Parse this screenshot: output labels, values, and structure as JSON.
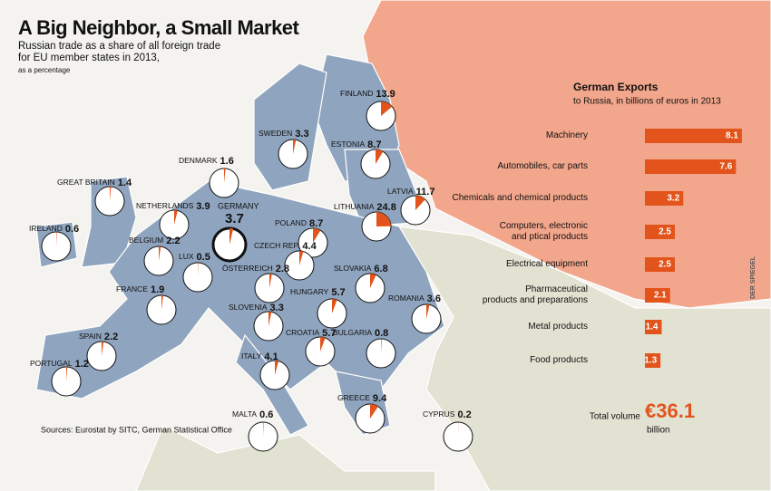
{
  "header": {
    "title": "A Big Neighbor, a Small Market",
    "subtitle": "Russian trade as a share of all foreign trade\nfor EU member states in 2013,",
    "note": "as a percentage"
  },
  "source": "Sources: Eurostat by SITC, German Statistical Office",
  "credit": "DER SPIEGEL",
  "countries": [
    {
      "name": "FINLAND",
      "value": 13.9
    },
    {
      "name": "SWEDEN",
      "value": 3.3
    },
    {
      "name": "ESTONIA",
      "value": 8.7
    },
    {
      "name": "DENMARK",
      "value": 1.6
    },
    {
      "name": "GREAT BRITAIN",
      "value": 1.4
    },
    {
      "name": "NETHERLANDS",
      "value": 3.9
    },
    {
      "name": "GERMANY",
      "value": 3.7
    },
    {
      "name": "LATVIA",
      "value": 11.7
    },
    {
      "name": "LITHUANIA",
      "value": 24.8
    },
    {
      "name": "IRELAND",
      "value": 0.6
    },
    {
      "name": "POLAND",
      "value": 8.7
    },
    {
      "name": "BELGIUM",
      "value": 2.2
    },
    {
      "name": "LUX",
      "value": 0.5
    },
    {
      "name": "CZECH REP.",
      "value": 4.4
    },
    {
      "name": "ÖSTERREICH",
      "value": 2.8
    },
    {
      "name": "SLOVAKIA",
      "value": 6.8
    },
    {
      "name": "FRANCE",
      "value": 1.9
    },
    {
      "name": "HUNGARY",
      "value": 5.7
    },
    {
      "name": "ROMANIA",
      "value": 3.6
    },
    {
      "name": "SLOVENIA",
      "value": 3.3
    },
    {
      "name": "CROATIA",
      "value": 5.7
    },
    {
      "name": "BULGARIA",
      "value": 0.8
    },
    {
      "name": "SPAIN",
      "value": 2.2
    },
    {
      "name": "PORTUGAL",
      "value": 1.2
    },
    {
      "name": "ITALY",
      "value": 4.1
    },
    {
      "name": "GREECE",
      "value": 9.4
    },
    {
      "name": "MALTA",
      "value": 0.6
    },
    {
      "name": "CYPRUS",
      "value": 0.2
    }
  ],
  "chart_data": {
    "type": "bar",
    "title": "German Exports",
    "subtitle": "to Russia, in billions of euros in 2013",
    "color": "#e2541b",
    "categories": [
      "Machinery",
      "Automobiles, car parts",
      "Chemicals and chemical products",
      "Computers, electronic\nand  ptical products",
      "Electrical equipment",
      "Pharmaceutical\nproducts and preparations",
      "Metal products",
      "Food products"
    ],
    "values": [
      8.1,
      7.6,
      3.2,
      2.5,
      2.5,
      2.1,
      1.4,
      1.3
    ]
  },
  "total": {
    "label": "Total volume",
    "amount": "€36.1",
    "unit": "billion"
  }
}
